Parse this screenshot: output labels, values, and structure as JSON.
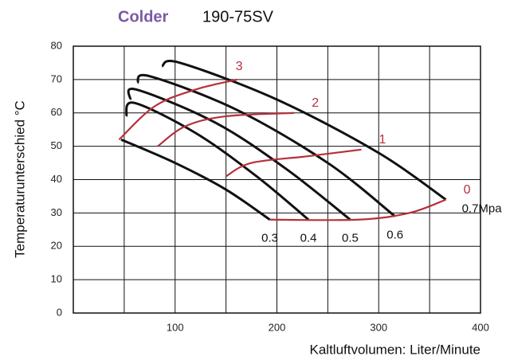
{
  "chart_data": {
    "type": "line",
    "title": {
      "brand": "Colder",
      "model": "190-75SV"
    },
    "x_label": "Kaltluftvolumen: Liter/Minute",
    "y_label": "Temperaturunterschied °C",
    "xlim": [
      0,
      400
    ],
    "ylim": [
      0,
      80
    ],
    "xticks": [
      100,
      200,
      300,
      400
    ],
    "yticks": [
      0,
      10,
      20,
      30,
      40,
      50,
      60,
      70,
      80
    ],
    "x_gridlines": [
      50,
      100,
      150,
      200,
      250,
      300,
      350
    ],
    "grid": true,
    "series": [
      {
        "name": "0.3",
        "color": "#111111",
        "x": [
          47,
          100,
          150,
          193
        ],
        "values": [
          52,
          45,
          37,
          28
        ]
      },
      {
        "name": "0.4",
        "color": "#111111",
        "x": [
          52,
          60,
          120,
          180,
          231
        ],
        "values": [
          59,
          63,
          54,
          41,
          28
        ]
      },
      {
        "name": "0.5",
        "color": "#111111",
        "x": [
          56,
          62,
          140,
          210,
          272
        ],
        "values": [
          64,
          67,
          57,
          43,
          28
        ]
      },
      {
        "name": "0.6",
        "color": "#111111",
        "x": [
          63,
          75,
          160,
          250,
          316
        ],
        "values": [
          69,
          71,
          61,
          45,
          29
        ]
      },
      {
        "name": "0.7Mpa",
        "color": "#111111",
        "x": [
          87,
          105,
          200,
          300,
          366
        ],
        "values": [
          74,
          75,
          64,
          48,
          34
        ]
      },
      {
        "name": "0",
        "color": "#b5303a",
        "x": [
          193,
          280,
          330,
          366
        ],
        "values": [
          28,
          28,
          30,
          34
        ]
      },
      {
        "name": "1",
        "color": "#b5303a",
        "x": [
          150,
          175,
          230,
          283
        ],
        "values": [
          41,
          45,
          47,
          49
        ]
      },
      {
        "name": "2",
        "color": "#b5303a",
        "x": [
          83,
          110,
          150,
          217
        ],
        "values": [
          50,
          56,
          59,
          60
        ]
      },
      {
        "name": "3",
        "color": "#b5303a",
        "x": [
          45,
          80,
          120,
          161
        ],
        "values": [
          52,
          62,
          67,
          70
        ]
      }
    ]
  }
}
